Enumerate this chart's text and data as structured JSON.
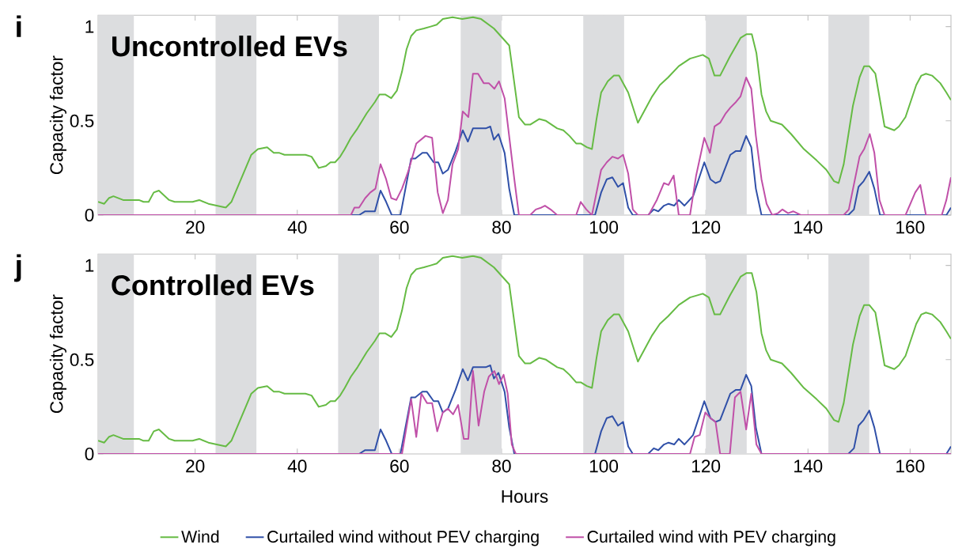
{
  "chart_data": [
    {
      "type": "line",
      "title": "Uncontrolled EVs",
      "ylabel": "Capacity factor",
      "annotations": [
        "i"
      ],
      "xlim": [
        1,
        168
      ],
      "ylim": [
        0,
        1.06
      ],
      "xticks": [
        20,
        40,
        60,
        80,
        100,
        120,
        140,
        160
      ],
      "yticks": [
        0,
        0.5,
        1
      ],
      "legend": false,
      "bands": [
        {
          "axis": "x",
          "from": 1,
          "to": 8,
          "color": "#dcdddf"
        },
        {
          "axis": "x",
          "from": 24,
          "to": 32,
          "color": "#dcdddf"
        },
        {
          "axis": "x",
          "from": 48,
          "to": 56,
          "color": "#dcdddf"
        },
        {
          "axis": "x",
          "from": 72,
          "to": 80,
          "color": "#dcdddf"
        },
        {
          "axis": "x",
          "from": 96,
          "to": 104,
          "color": "#dcdddf"
        },
        {
          "axis": "x",
          "from": 120,
          "to": 128,
          "color": "#dcdddf"
        },
        {
          "axis": "x",
          "from": 144,
          "to": 152,
          "color": "#dcdddf"
        }
      ],
      "series": [
        {
          "color": "#66bb44",
          "x": [
            1,
            2.2,
            3.1,
            4,
            5.9,
            9,
            9.9,
            10.9,
            11.9,
            12.9,
            14.9,
            16,
            17.7,
            19.5,
            20.8,
            22.6,
            26,
            27.1,
            31,
            32.3,
            34.1,
            35.4,
            36.5,
            37.5,
            38.8,
            40,
            41.6,
            42.8,
            44.2,
            45.6,
            46.5,
            47.4,
            48.4,
            49.3,
            50.5,
            51.8,
            53.6,
            55.2,
            56.1,
            57.2,
            58.4,
            59.5,
            60.5,
            61.4,
            62.3,
            63.3,
            64.8,
            66.1,
            67.3,
            68.5,
            70.4,
            72.3,
            74.4,
            76,
            78.5,
            81.5,
            83.4,
            84.6,
            85.6,
            87.4,
            88.7,
            90.9,
            92.1,
            93.3,
            94.6,
            95.5,
            96.7,
            97.7,
            98.6,
            99.5,
            100.8,
            102,
            103,
            104.8,
            106.7,
            109.5,
            111,
            112.6,
            114.7,
            116.9,
            119.4,
            120.6,
            121.7,
            122.8,
            124.7,
            126.8,
            128,
            129,
            129.9,
            130.9,
            131.8,
            132.7,
            134.9,
            136.7,
            139.2,
            141.7,
            143.6,
            145.1,
            146,
            147,
            148.8,
            150.1,
            151,
            152,
            153.2,
            155,
            156.9,
            157.8,
            159.1,
            161.2,
            162.2,
            163.1,
            164.3,
            165.9,
            167.1,
            168
          ],
          "values": [
            0.07,
            0.06,
            0.09,
            0.1,
            0.08,
            0.08,
            0.07,
            0.07,
            0.12,
            0.13,
            0.08,
            0.07,
            0.07,
            0.07,
            0.08,
            0.06,
            0.04,
            0.07,
            0.32,
            0.35,
            0.36,
            0.33,
            0.33,
            0.32,
            0.32,
            0.32,
            0.32,
            0.31,
            0.25,
            0.26,
            0.28,
            0.28,
            0.31,
            0.35,
            0.41,
            0.46,
            0.54,
            0.6,
            0.64,
            0.64,
            0.62,
            0.66,
            0.76,
            0.88,
            0.95,
            0.98,
            0.99,
            1.0,
            1.01,
            1.04,
            1.05,
            1.04,
            1.05,
            1.04,
            0.99,
            0.9,
            0.52,
            0.48,
            0.48,
            0.51,
            0.5,
            0.46,
            0.45,
            0.42,
            0.38,
            0.38,
            0.36,
            0.35,
            0.51,
            0.65,
            0.71,
            0.74,
            0.74,
            0.65,
            0.49,
            0.63,
            0.69,
            0.73,
            0.79,
            0.83,
            0.85,
            0.83,
            0.74,
            0.74,
            0.84,
            0.94,
            0.96,
            0.96,
            0.86,
            0.64,
            0.55,
            0.5,
            0.48,
            0.43,
            0.35,
            0.29,
            0.24,
            0.18,
            0.17,
            0.27,
            0.58,
            0.73,
            0.79,
            0.79,
            0.75,
            0.47,
            0.45,
            0.47,
            0.52,
            0.69,
            0.74,
            0.75,
            0.74,
            0.7,
            0.65,
            0.61
          ]
        },
        {
          "color": "#3050a8",
          "x": [
            1,
            50.5,
            52.1,
            53.3,
            55.2,
            56.3,
            57.4,
            58.5,
            60.2,
            62.3,
            63.1,
            64.5,
            65.4,
            66.7,
            67.6,
            68.5,
            69.5,
            71,
            72.4,
            73.4,
            74.4,
            75.7,
            76.9,
            77.8,
            78.5,
            79.4,
            80.6,
            81.5,
            82.5,
            98.3,
            99.5,
            100.6,
            101.7,
            102.8,
            103.8,
            104.8,
            105.7,
            108.7,
            109.8,
            110.7,
            111.8,
            112.7,
            113.8,
            114.7,
            115.8,
            117.5,
            119.7,
            120.9,
            121.9,
            122.8,
            124.8,
            125.9,
            126.8,
            127.9,
            128.9,
            129.8,
            130.9,
            147.9,
            149,
            149.9,
            150.9,
            152,
            153,
            154.1,
            167.1,
            168
          ],
          "values": [
            0,
            0,
            0,
            0.02,
            0.02,
            0.13,
            0.07,
            0,
            0,
            0.3,
            0.3,
            0.33,
            0.33,
            0.28,
            0.28,
            0.22,
            0.24,
            0.34,
            0.45,
            0.39,
            0.46,
            0.46,
            0.46,
            0.47,
            0.4,
            0.43,
            0.33,
            0.14,
            0,
            0,
            0.12,
            0.19,
            0.2,
            0.15,
            0.17,
            0.04,
            0,
            0,
            0.03,
            0.02,
            0.05,
            0.06,
            0.05,
            0.08,
            0.05,
            0.1,
            0.28,
            0.19,
            0.17,
            0.18,
            0.32,
            0.34,
            0.34,
            0.42,
            0.36,
            0.14,
            0,
            0,
            0.03,
            0.15,
            0.18,
            0.23,
            0.14,
            0,
            0,
            0.04
          ]
        },
        {
          "color": "#c050a8",
          "x": [
            1,
            50.5,
            51.2,
            52.1,
            53.3,
            54.3,
            55.3,
            56.3,
            57.4,
            58.4,
            59.4,
            60.5,
            61.7,
            63.3,
            65.1,
            66.4,
            67.5,
            68.5,
            69.5,
            70.4,
            71.5,
            72.4,
            73.5,
            74.4,
            75.4,
            76.5,
            77.5,
            78.6,
            79.5,
            80.6,
            82.5,
            83.4,
            85.6,
            86.7,
            87.8,
            88.5,
            89.6,
            90.9,
            94.6,
            95.5,
            96.6,
            97.7,
            99.5,
            100.6,
            101.7,
            102.8,
            103.8,
            104.8,
            105.7,
            106.7,
            108.8,
            110.4,
            111.8,
            112.7,
            113.7,
            114.7,
            116.9,
            118.1,
            119.7,
            120.8,
            121.7,
            122.8,
            123.9,
            124.8,
            125.9,
            126.8,
            127.9,
            128.9,
            129.8,
            130.9,
            131.9,
            133,
            134.1,
            135,
            136.1,
            137.1,
            138.6,
            147,
            148,
            150.1,
            151,
            152.1,
            153,
            154,
            155,
            159.1,
            161,
            162,
            163.1,
            166.2,
            167.1,
            168
          ],
          "values": [
            0,
            0,
            0.04,
            0.04,
            0.09,
            0.12,
            0.14,
            0.27,
            0.19,
            0.09,
            0.08,
            0.14,
            0.23,
            0.38,
            0.42,
            0.41,
            0.12,
            0.01,
            0.08,
            0.27,
            0.35,
            0.55,
            0.52,
            0.75,
            0.75,
            0.7,
            0.7,
            0.67,
            0.71,
            0.62,
            0.19,
            0,
            0,
            0.03,
            0.04,
            0.05,
            0.03,
            0,
            0,
            0.07,
            0.03,
            0,
            0.24,
            0.28,
            0.31,
            0.3,
            0.32,
            0.22,
            0.03,
            0,
            0,
            0.08,
            0.17,
            0.16,
            0.21,
            0,
            0,
            0.21,
            0.41,
            0.33,
            0.47,
            0.49,
            0.54,
            0.57,
            0.6,
            0.63,
            0.73,
            0.67,
            0.42,
            0.19,
            0.06,
            0,
            0.01,
            0.03,
            0.01,
            0.02,
            0,
            0,
            0.03,
            0.31,
            0.35,
            0.43,
            0.33,
            0.08,
            0,
            0,
            0.12,
            0.16,
            0,
            0,
            0.08,
            0.2
          ]
        }
      ]
    },
    {
      "type": "line",
      "title": "Controlled EVs",
      "xlabel": "Hours",
      "ylabel": "Capacity factor",
      "annotations": [
        "j"
      ],
      "xlim": [
        1,
        168
      ],
      "ylim": [
        0,
        1.06
      ],
      "xticks": [
        20,
        40,
        60,
        80,
        100,
        120,
        140,
        160
      ],
      "yticks": [
        0,
        0.5,
        1
      ],
      "legend": "bottom",
      "bands": [
        {
          "axis": "x",
          "from": 1,
          "to": 8,
          "color": "#dcdddf"
        },
        {
          "axis": "x",
          "from": 24,
          "to": 32,
          "color": "#dcdddf"
        },
        {
          "axis": "x",
          "from": 48,
          "to": 56,
          "color": "#dcdddf"
        },
        {
          "axis": "x",
          "from": 72,
          "to": 80,
          "color": "#dcdddf"
        },
        {
          "axis": "x",
          "from": 96,
          "to": 104,
          "color": "#dcdddf"
        },
        {
          "axis": "x",
          "from": 120,
          "to": 128,
          "color": "#dcdddf"
        },
        {
          "axis": "x",
          "from": 144,
          "to": 152,
          "color": "#dcdddf"
        }
      ],
      "series": [
        {
          "name": "Wind",
          "color": "#66bb44",
          "x": [
            1,
            2.2,
            3.1,
            4,
            5.9,
            9,
            9.9,
            10.9,
            11.9,
            12.9,
            14.9,
            16,
            17.7,
            19.5,
            20.8,
            22.6,
            26,
            27.1,
            31,
            32.3,
            34.1,
            35.4,
            36.5,
            37.5,
            38.8,
            40,
            41.6,
            42.8,
            44.2,
            45.6,
            46.5,
            47.4,
            48.4,
            49.3,
            50.5,
            51.8,
            53.6,
            55.2,
            56.1,
            57.2,
            58.4,
            59.5,
            60.5,
            61.4,
            62.3,
            63.3,
            64.8,
            66.1,
            67.3,
            68.5,
            70.4,
            72.3,
            74.4,
            76,
            78.5,
            81.5,
            83.4,
            84.6,
            85.6,
            87.4,
            88.7,
            90.9,
            92.1,
            93.3,
            94.6,
            95.5,
            96.7,
            97.7,
            98.6,
            99.5,
            100.8,
            102,
            103,
            104.8,
            106.7,
            109.5,
            111,
            112.6,
            114.7,
            116.9,
            119.4,
            120.6,
            121.7,
            122.8,
            124.7,
            126.8,
            128,
            129,
            129.9,
            130.9,
            131.8,
            132.7,
            134.9,
            136.7,
            139.2,
            141.7,
            143.6,
            145.1,
            146,
            147,
            148.8,
            150.1,
            151,
            152,
            153.2,
            155,
            156.9,
            157.8,
            159.1,
            161.2,
            162.2,
            163.1,
            164.3,
            165.9,
            167.1,
            168
          ],
          "values": [
            0.07,
            0.06,
            0.09,
            0.1,
            0.08,
            0.08,
            0.07,
            0.07,
            0.12,
            0.13,
            0.08,
            0.07,
            0.07,
            0.07,
            0.08,
            0.06,
            0.04,
            0.07,
            0.32,
            0.35,
            0.36,
            0.33,
            0.33,
            0.32,
            0.32,
            0.32,
            0.32,
            0.31,
            0.25,
            0.26,
            0.28,
            0.28,
            0.31,
            0.35,
            0.41,
            0.46,
            0.54,
            0.6,
            0.64,
            0.64,
            0.62,
            0.66,
            0.76,
            0.88,
            0.95,
            0.98,
            0.99,
            1.0,
            1.01,
            1.04,
            1.05,
            1.04,
            1.05,
            1.04,
            0.99,
            0.9,
            0.52,
            0.48,
            0.48,
            0.51,
            0.5,
            0.46,
            0.45,
            0.42,
            0.38,
            0.38,
            0.36,
            0.35,
            0.51,
            0.65,
            0.71,
            0.74,
            0.74,
            0.65,
            0.49,
            0.63,
            0.69,
            0.73,
            0.79,
            0.83,
            0.85,
            0.83,
            0.74,
            0.74,
            0.84,
            0.94,
            0.96,
            0.96,
            0.86,
            0.64,
            0.55,
            0.5,
            0.48,
            0.43,
            0.35,
            0.29,
            0.24,
            0.18,
            0.17,
            0.27,
            0.58,
            0.73,
            0.79,
            0.79,
            0.75,
            0.47,
            0.45,
            0.47,
            0.52,
            0.69,
            0.74,
            0.75,
            0.74,
            0.7,
            0.65,
            0.61
          ]
        },
        {
          "name": "Curtailed wind without PEV charging",
          "color": "#3050a8",
          "x": [
            1,
            50.5,
            52.1,
            53.3,
            55.2,
            56.3,
            57.4,
            58.5,
            60.2,
            62.3,
            63.1,
            64.5,
            65.4,
            66.7,
            67.6,
            68.5,
            69.5,
            71,
            72.4,
            73.4,
            74.4,
            75.7,
            76.9,
            77.8,
            78.5,
            79.4,
            80.6,
            81.5,
            82.5,
            98.3,
            99.5,
            100.6,
            101.7,
            102.8,
            103.8,
            104.8,
            105.7,
            108.7,
            109.8,
            110.7,
            111.8,
            112.7,
            113.8,
            114.7,
            115.8,
            117.5,
            119.7,
            120.9,
            121.9,
            122.8,
            124.8,
            125.9,
            126.8,
            127.9,
            128.9,
            129.8,
            130.9,
            147.9,
            149,
            149.9,
            150.9,
            152,
            153,
            154.1,
            167.1,
            168
          ],
          "values": [
            0,
            0,
            0,
            0.02,
            0.02,
            0.13,
            0.07,
            0,
            0,
            0.3,
            0.3,
            0.33,
            0.33,
            0.28,
            0.28,
            0.22,
            0.24,
            0.34,
            0.45,
            0.39,
            0.46,
            0.46,
            0.46,
            0.47,
            0.4,
            0.43,
            0.33,
            0.14,
            0,
            0,
            0.12,
            0.19,
            0.2,
            0.15,
            0.17,
            0.04,
            0,
            0,
            0.03,
            0.02,
            0.05,
            0.06,
            0.05,
            0.08,
            0.05,
            0.1,
            0.28,
            0.19,
            0.17,
            0.18,
            0.32,
            0.34,
            0.34,
            0.42,
            0.36,
            0.14,
            0,
            0,
            0.03,
            0.15,
            0.18,
            0.23,
            0.14,
            0,
            0,
            0.04
          ]
        },
        {
          "name": "Curtailed wind with PEV charging",
          "color": "#c050a8",
          "x": [
            1,
            60.5,
            62.3,
            63.3,
            64.3,
            65.4,
            66.4,
            67.4,
            68.5,
            69.5,
            70.5,
            71.5,
            72.6,
            73.5,
            74.4,
            75.5,
            76.6,
            77.5,
            78.6,
            79.5,
            80.4,
            81.2,
            82,
            82.8,
            116.9,
            117.8,
            118.8,
            119.9,
            120.9,
            121.9,
            122.8,
            124.7,
            125.7,
            126.8,
            127.9,
            128.9,
            129.9,
            130.9,
            168
          ],
          "values": [
            0,
            0,
            0.29,
            0.09,
            0.32,
            0.27,
            0.27,
            0.12,
            0.22,
            0.24,
            0.21,
            0.26,
            0.08,
            0.08,
            0.44,
            0.15,
            0.33,
            0.41,
            0.44,
            0.37,
            0.42,
            0.32,
            0.05,
            0,
            0,
            0.09,
            0.1,
            0.22,
            0.19,
            0.17,
            0,
            0,
            0.3,
            0.33,
            0.13,
            0.32,
            0.05,
            0,
            0
          ]
        }
      ]
    }
  ]
}
